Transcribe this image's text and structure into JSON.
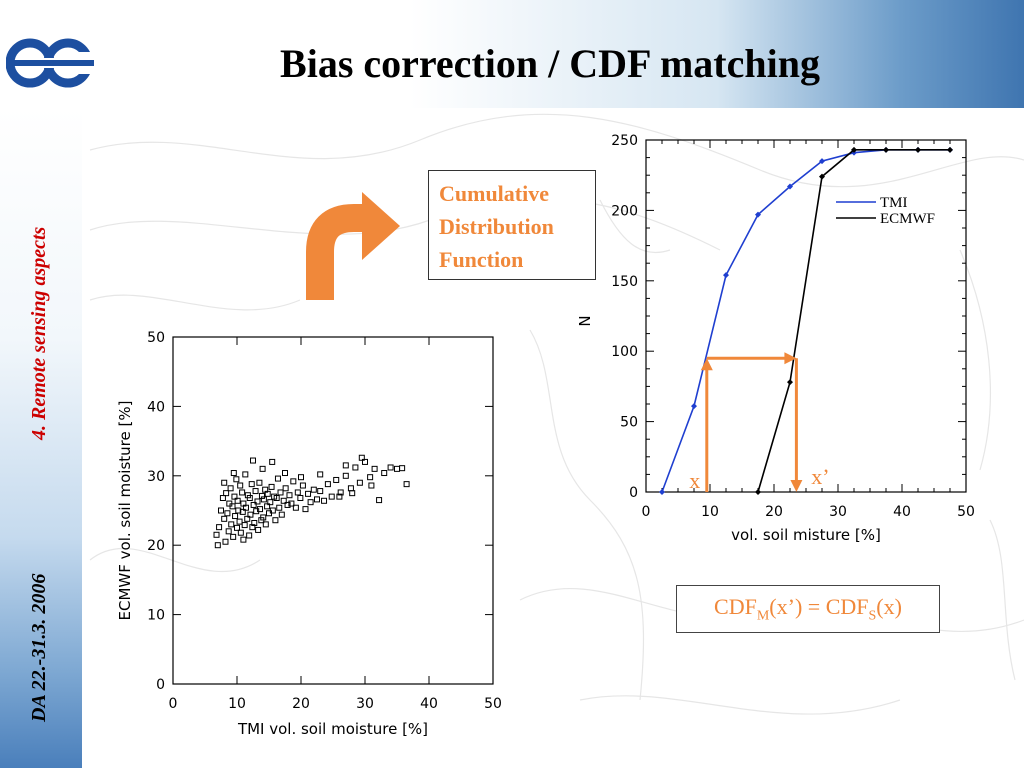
{
  "slide": {
    "title": "Bias correction / CDF matching",
    "section": "4. Remote sensing aspects",
    "date": "DA 22.-31.3. 2006"
  },
  "colors": {
    "accent_orange": "#f0883a",
    "section_red": "#cc0000",
    "tmi_line": "#1f3fd0",
    "ecmwf_line": "#000000"
  },
  "icons": [
    "ecmwf-logo-icon",
    "curved-arrow-icon"
  ],
  "cdf_label": {
    "line1": "Cumulative",
    "line2": "Distribution",
    "line3": "Function"
  },
  "formula": {
    "lhs": "CDF",
    "lhs_sub": "M",
    "lhs_arg": "(x’) = ",
    "rhs": "CDF",
    "rhs_sub": "S",
    "rhs_arg": "(x)"
  },
  "chart_data": [
    {
      "type": "scatter",
      "xlabel": "TMI vol. soil moisture [%]",
      "ylabel": "ECMWF vol. soil moisture [%]",
      "xlim": [
        0,
        50
      ],
      "ylim": [
        0,
        50
      ],
      "xticks": [
        "0",
        "10",
        "20",
        "30",
        "40",
        "50"
      ],
      "yticks": [
        "0",
        "10",
        "20",
        "30",
        "40",
        "50"
      ],
      "grid": false,
      "marker": "open-square",
      "points": [
        [
          6.8,
          21.5
        ],
        [
          7.0,
          20.0
        ],
        [
          7.2,
          22.6
        ],
        [
          7.5,
          25.0
        ],
        [
          7.8,
          26.8
        ],
        [
          8.0,
          23.8
        ],
        [
          8.2,
          20.5
        ],
        [
          8.3,
          27.5
        ],
        [
          8.5,
          24.6
        ],
        [
          8.7,
          22.0
        ],
        [
          8.8,
          26.0
        ],
        [
          9.0,
          28.2
        ],
        [
          9.1,
          23.0
        ],
        [
          9.3,
          25.6
        ],
        [
          9.4,
          21.2
        ],
        [
          9.6,
          27.0
        ],
        [
          9.7,
          24.2
        ],
        [
          9.9,
          29.5
        ],
        [
          10.0,
          22.5
        ],
        [
          10.1,
          26.4
        ],
        [
          10.2,
          25.0
        ],
        [
          10.4,
          23.4
        ],
        [
          10.5,
          28.6
        ],
        [
          10.6,
          21.8
        ],
        [
          10.8,
          27.6
        ],
        [
          10.9,
          24.8
        ],
        [
          11.0,
          26.0
        ],
        [
          11.2,
          22.9
        ],
        [
          11.3,
          30.2
        ],
        [
          11.4,
          25.4
        ],
        [
          11.6,
          23.8
        ],
        [
          11.7,
          27.2
        ],
        [
          11.9,
          21.4
        ],
        [
          12.0,
          26.8
        ],
        [
          12.1,
          24.4
        ],
        [
          12.3,
          28.8
        ],
        [
          12.4,
          22.6
        ],
        [
          12.6,
          25.8
        ],
        [
          12.7,
          23.2
        ],
        [
          12.9,
          27.8
        ],
        [
          13.0,
          24.9
        ],
        [
          13.2,
          26.3
        ],
        [
          13.3,
          22.2
        ],
        [
          13.5,
          29.0
        ],
        [
          13.6,
          25.2
        ],
        [
          13.8,
          23.6
        ],
        [
          13.9,
          27.1
        ],
        [
          14.1,
          24.0
        ],
        [
          14.2,
          26.6
        ],
        [
          14.4,
          28.0
        ],
        [
          14.5,
          23.0
        ],
        [
          14.7,
          25.6
        ],
        [
          14.8,
          27.4
        ],
        [
          15.0,
          24.6
        ],
        [
          15.2,
          26.2
        ],
        [
          15.4,
          28.4
        ],
        [
          15.6,
          25.0
        ],
        [
          15.8,
          27.0
        ],
        [
          16.0,
          23.6
        ],
        [
          16.2,
          26.8
        ],
        [
          16.4,
          29.6
        ],
        [
          16.6,
          25.4
        ],
        [
          16.8,
          27.6
        ],
        [
          17.0,
          24.4
        ],
        [
          17.3,
          26.4
        ],
        [
          17.6,
          28.2
        ],
        [
          17.9,
          25.8
        ],
        [
          18.2,
          27.2
        ],
        [
          18.5,
          26.0
        ],
        [
          18.8,
          29.2
        ],
        [
          19.2,
          25.4
        ],
        [
          19.5,
          27.6
        ],
        [
          19.9,
          26.8
        ],
        [
          20.3,
          28.6
        ],
        [
          20.7,
          25.2
        ],
        [
          21.1,
          27.4
        ],
        [
          21.5,
          26.2
        ],
        [
          22.0,
          28.0
        ],
        [
          22.5,
          26.6
        ],
        [
          23.0,
          27.8
        ],
        [
          23.6,
          26.4
        ],
        [
          24.2,
          28.8
        ],
        [
          24.8,
          27.0
        ],
        [
          25.5,
          29.4
        ],
        [
          26.2,
          27.6
        ],
        [
          27.0,
          30.0
        ],
        [
          27.8,
          28.2
        ],
        [
          28.5,
          31.2
        ],
        [
          29.2,
          29.0
        ],
        [
          30.0,
          32.0
        ],
        [
          30.8,
          29.8
        ],
        [
          31.5,
          31.0
        ],
        [
          32.2,
          26.5
        ],
        [
          33.0,
          30.4
        ],
        [
          34.0,
          31.2
        ],
        [
          35.0,
          31.0
        ],
        [
          35.8,
          31.1
        ],
        [
          36.5,
          28.8
        ],
        [
          12.5,
          32.2
        ],
        [
          14.0,
          31.0
        ],
        [
          9.5,
          30.4
        ],
        [
          27.0,
          31.5
        ],
        [
          29.5,
          32.6
        ],
        [
          28.0,
          27.5
        ],
        [
          26.0,
          27.0
        ],
        [
          31.0,
          28.6
        ],
        [
          23.0,
          30.2
        ],
        [
          20.0,
          29.8
        ],
        [
          17.5,
          30.4
        ],
        [
          15.5,
          32.0
        ],
        [
          11.0,
          20.8
        ],
        [
          8.0,
          29.0
        ]
      ]
    },
    {
      "type": "line",
      "xlabel": "vol. soil misture [%]",
      "ylabel": "N",
      "xlim": [
        0,
        50
      ],
      "ylim": [
        0,
        250
      ],
      "xticks": [
        "0",
        "10",
        "20",
        "30",
        "40",
        "50"
      ],
      "yticks": [
        "0",
        "50",
        "100",
        "150",
        "200",
        "250"
      ],
      "grid": false,
      "legend_placement": "top-right",
      "series": [
        {
          "name": "TMI",
          "color": "#1f3fd0",
          "x": [
            2.5,
            7.5,
            12.5,
            17.5,
            22.5,
            27.5,
            32.5,
            37.5,
            42.5,
            47.5
          ],
          "y": [
            0,
            61,
            154,
            197,
            217,
            235,
            241,
            243,
            243,
            243
          ]
        },
        {
          "name": "ECMWF",
          "color": "#000000",
          "x": [
            17.5,
            22.5,
            27.5,
            32.5,
            37.5,
            42.5,
            47.5
          ],
          "y": [
            0,
            78,
            224,
            243,
            243,
            243,
            243
          ]
        }
      ],
      "annotations": {
        "x_label": "x",
        "x_value": 9.5,
        "xprime_label": "x’",
        "xprime_value": 23.5,
        "level": 95
      }
    }
  ]
}
